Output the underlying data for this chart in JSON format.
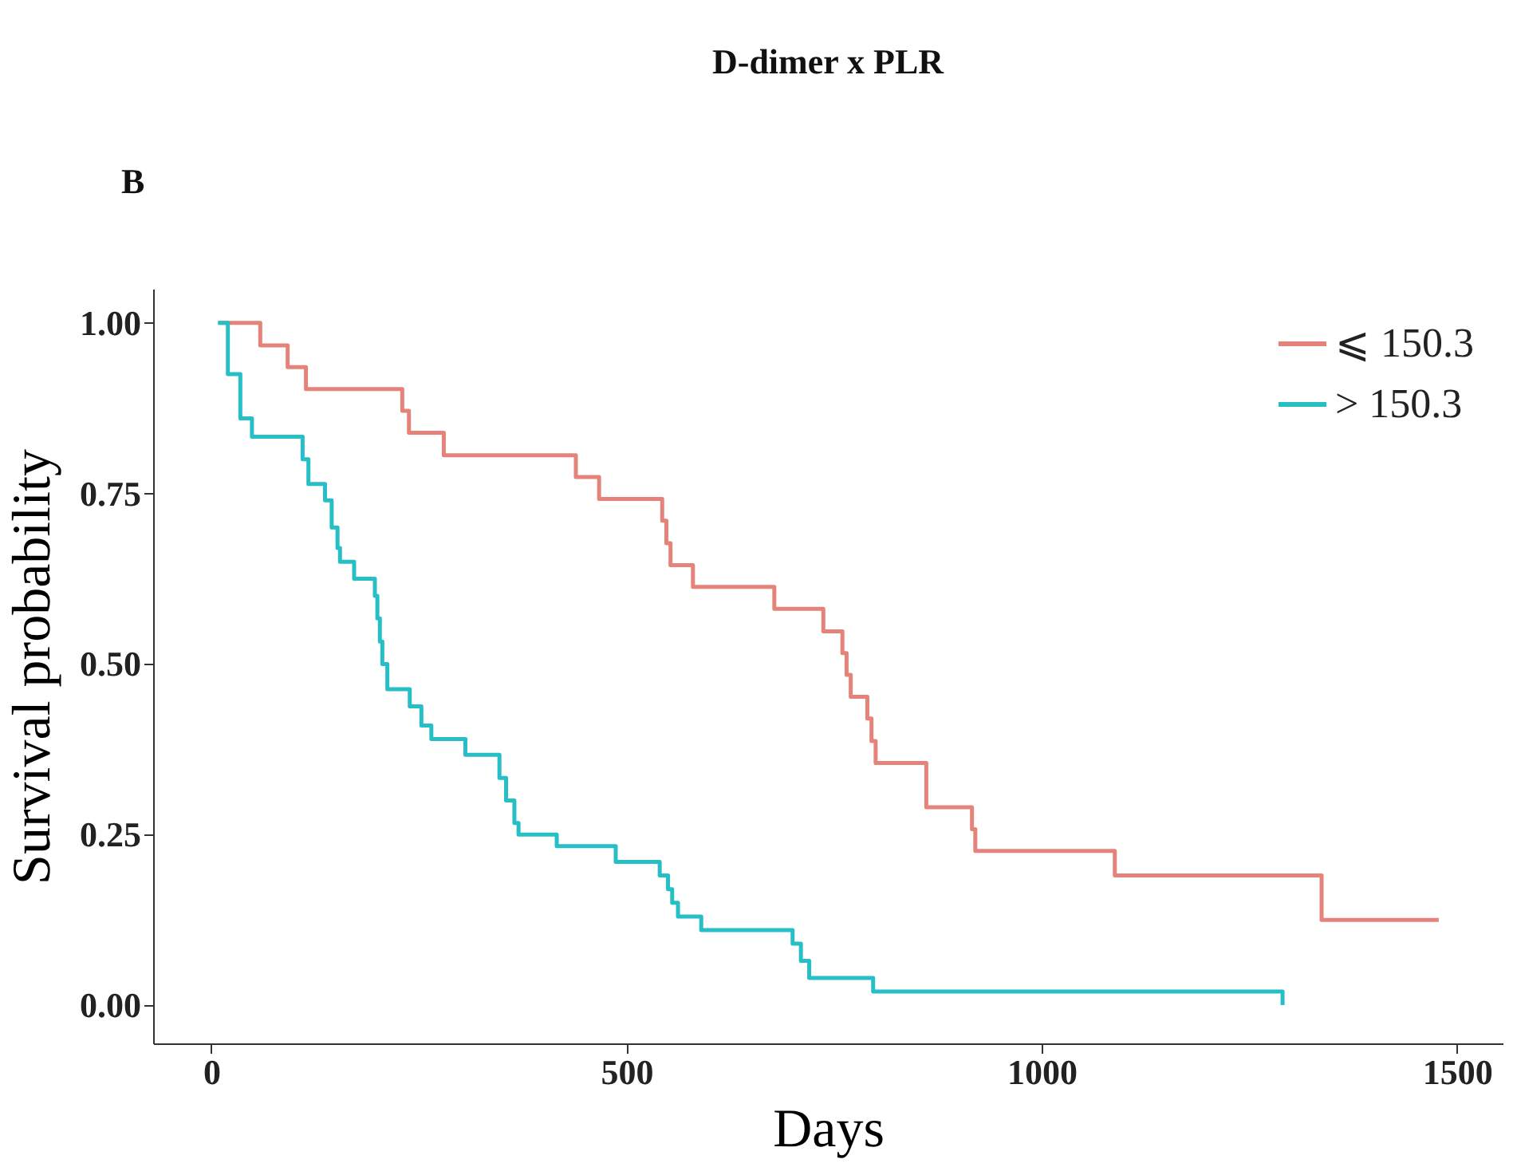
{
  "chart_data": {
    "type": "step",
    "title": "D-dimer x PLR",
    "xlabel": "Days",
    "ylabel": "Survival probability",
    "annotations": [
      "B"
    ],
    "xlim": [
      -70,
      1555
    ],
    "xticks": [
      0,
      500,
      1000,
      1500
    ],
    "ylim": [
      -0.056,
      1.05
    ],
    "yticks": [
      {
        "value": 0,
        "label": "0.00"
      },
      {
        "value": 0.25,
        "label": "0.25"
      },
      {
        "value": 0.5,
        "label": "0.50"
      },
      {
        "value": 0.75,
        "label": "0.75"
      },
      {
        "value": 1,
        "label": "1.00"
      }
    ],
    "grid": false,
    "legend": "top right",
    "marker": "none",
    "line_style": "solid",
    "series": [
      {
        "name": "⩽ 150.3",
        "color": "#e5837a",
        "x": [
          10,
          59,
          92,
          114,
          230,
          238,
          280,
          439,
          467,
          543,
          548,
          553,
          580,
          678,
          737,
          760,
          765,
          770,
          790,
          795,
          800,
          861,
          916,
          920,
          1088,
          1337,
          1478
        ],
        "values": [
          1.0,
          0.967,
          0.935,
          0.903,
          0.871,
          0.839,
          0.806,
          0.774,
          0.742,
          0.71,
          0.677,
          0.645,
          0.613,
          0.581,
          0.548,
          0.516,
          0.484,
          0.452,
          0.42,
          0.387,
          0.355,
          0.29,
          0.258,
          0.226,
          0.19,
          0.125,
          0.125
        ]
      },
      {
        "name": "> 150.3",
        "color": "#26bfc6",
        "x": [
          8,
          20,
          35,
          49,
          110,
          117,
          137,
          145,
          152,
          155,
          172,
          197,
          200,
          203,
          206,
          212,
          239,
          253,
          265,
          306,
          347,
          355,
          365,
          370,
          416,
          487,
          540,
          550,
          555,
          562,
          590,
          700,
          710,
          720,
          797,
          1282,
          1290
        ],
        "values": [
          1.0,
          0.925,
          0.86,
          0.833,
          0.8,
          0.764,
          0.74,
          0.7,
          0.67,
          0.65,
          0.625,
          0.6,
          0.567,
          0.533,
          0.5,
          0.463,
          0.438,
          0.41,
          0.39,
          0.367,
          0.333,
          0.3,
          0.267,
          0.25,
          0.233,
          0.21,
          0.19,
          0.17,
          0.15,
          0.13,
          0.11,
          0.09,
          0.065,
          0.04,
          0.02,
          0.02,
          0.0
        ]
      }
    ]
  }
}
